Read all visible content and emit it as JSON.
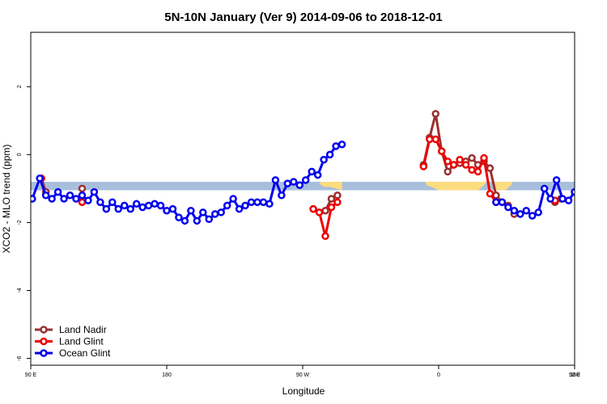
{
  "chart_data": {
    "type": "line",
    "title": "5N-10N January (Ver 9)   2014-09-06 to 2018-12-01",
    "xlabel": "Longitude",
    "ylabel": "XCO2 - MLO trend (ppm)",
    "xlim": [
      90,
      450
    ],
    "ylim": [
      -6.2,
      3.6
    ],
    "x_ticks": [
      {
        "value": 90,
        "label": "90 E"
      },
      {
        "value": 180,
        "label": "180"
      },
      {
        "value": 270,
        "label": "90 W"
      },
      {
        "value": 360,
        "label": "0"
      },
      {
        "value": 450,
        "label": "90 E"
      },
      {
        "value": 540,
        "label": "180"
      }
    ],
    "y_ticks": [
      {
        "value": -6,
        "label": "-6"
      },
      {
        "value": -4,
        "label": "-4"
      },
      {
        "value": -2,
        "label": "-2"
      },
      {
        "value": 0,
        "label": "0"
      },
      {
        "value": 2,
        "label": "2"
      }
    ],
    "band": {
      "y_min": -1.05,
      "y_max": -0.8,
      "color": "#a8bfdc",
      "land_color": "#fddc80"
    },
    "legend": {
      "placement": "bottom-left"
    },
    "series": [
      {
        "name": "Land Nadir",
        "color": "#9b3030",
        "segments": [
          [
            [
              97,
              -0.7
            ],
            [
              100,
              -1.1
            ]
          ],
          [
            [
              124,
              -1.0
            ]
          ],
          [
            [
              277,
              -1.6
            ],
            [
              281,
              -1.7
            ],
            [
              285,
              -1.65
            ],
            [
              289,
              -1.3
            ],
            [
              293,
              -1.2
            ]
          ],
          [
            [
              350,
              -0.3
            ],
            [
              354,
              0.5
            ],
            [
              358,
              1.2
            ],
            [
              362,
              0.1
            ],
            [
              366,
              -0.5
            ],
            [
              370,
              -0.3
            ],
            [
              374,
              -0.25
            ],
            [
              378,
              -0.2
            ],
            [
              382,
              -0.1
            ],
            [
              386,
              -0.3
            ],
            [
              390,
              -0.2
            ],
            [
              394,
              -0.4
            ],
            [
              398,
              -1.2
            ],
            [
              402,
              -1.4
            ],
            [
              406,
              -1.5
            ],
            [
              410,
              -1.75
            ]
          ],
          [
            [
              437,
              -1.4
            ],
            [
              441,
              -1.3
            ]
          ],
          [
            [
              459,
              -0.7
            ],
            [
              463,
              -1.1
            ]
          ],
          [
            [
              482,
              -1.0
            ]
          ]
        ]
      },
      {
        "name": "Land Glint",
        "color": "#ee0000",
        "segments": [
          [
            [
              97,
              -0.7
            ]
          ],
          [
            [
              124,
              -1.4
            ]
          ],
          [
            [
              277,
              -1.6
            ],
            [
              281,
              -1.7
            ],
            [
              285,
              -2.4
            ],
            [
              289,
              -1.55
            ],
            [
              293,
              -1.4
            ]
          ],
          [
            [
              350,
              -0.35
            ],
            [
              354,
              0.45
            ],
            [
              358,
              0.45
            ],
            [
              362,
              0.1
            ],
            [
              366,
              -0.2
            ],
            [
              370,
              -0.3
            ],
            [
              374,
              -0.15
            ],
            [
              378,
              -0.3
            ],
            [
              382,
              -0.45
            ],
            [
              386,
              -0.5
            ],
            [
              390,
              -0.1
            ],
            [
              394,
              -1.15
            ],
            [
              398,
              -1.4
            ]
          ],
          [
            [
              437,
              -1.35
            ]
          ],
          [
            [
              459,
              -0.7
            ]
          ],
          [
            [
              482,
              -1.4
            ]
          ]
        ]
      },
      {
        "name": "Ocean Glint",
        "color": "#0000ee",
        "segments": [
          [
            [
              91,
              -1.3
            ],
            [
              96,
              -0.7
            ],
            [
              100,
              -1.2
            ],
            [
              104,
              -1.3
            ],
            [
              108,
              -1.1
            ],
            [
              112,
              -1.3
            ],
            [
              116,
              -1.2
            ],
            [
              120,
              -1.3
            ],
            [
              124,
              -1.2
            ],
            [
              128,
              -1.35
            ],
            [
              132,
              -1.1
            ],
            [
              136,
              -1.4
            ],
            [
              140,
              -1.6
            ],
            [
              144,
              -1.4
            ],
            [
              148,
              -1.6
            ],
            [
              152,
              -1.5
            ],
            [
              156,
              -1.6
            ],
            [
              160,
              -1.45
            ],
            [
              164,
              -1.55
            ],
            [
              168,
              -1.5
            ],
            [
              172,
              -1.45
            ],
            [
              176,
              -1.5
            ],
            [
              180,
              -1.65
            ],
            [
              184,
              -1.6
            ],
            [
              188,
              -1.85
            ],
            [
              192,
              -1.95
            ],
            [
              196,
              -1.65
            ],
            [
              200,
              -1.95
            ],
            [
              204,
              -1.7
            ],
            [
              208,
              -1.9
            ],
            [
              212,
              -1.75
            ],
            [
              216,
              -1.7
            ],
            [
              220,
              -1.5
            ],
            [
              224,
              -1.3
            ],
            [
              228,
              -1.6
            ],
            [
              232,
              -1.5
            ],
            [
              236,
              -1.4
            ],
            [
              240,
              -1.4
            ],
            [
              244,
              -1.4
            ],
            [
              248,
              -1.45
            ],
            [
              252,
              -0.75
            ],
            [
              256,
              -1.2
            ],
            [
              260,
              -0.85
            ],
            [
              264,
              -0.8
            ],
            [
              268,
              -0.9
            ],
            [
              272,
              -0.75
            ],
            [
              276,
              -0.5
            ],
            [
              280,
              -0.6
            ],
            [
              284,
              -0.15
            ],
            [
              288,
              0.0
            ],
            [
              292,
              0.25
            ],
            [
              296,
              0.3
            ]
          ],
          [
            [
              398,
              -1.4
            ],
            [
              402,
              -1.4
            ],
            [
              406,
              -1.55
            ],
            [
              410,
              -1.65
            ],
            [
              414,
              -1.75
            ],
            [
              418,
              -1.65
            ],
            [
              422,
              -1.8
            ],
            [
              426,
              -1.7
            ],
            [
              430,
              -1.0
            ],
            [
              434,
              -1.3
            ],
            [
              438,
              -0.75
            ],
            [
              442,
              -1.3
            ],
            [
              446,
              -1.35
            ],
            [
              450,
              -1.1
            ],
            [
              454,
              -1.3
            ],
            [
              458,
              -1.15
            ],
            [
              462,
              -1.35
            ],
            [
              466,
              -1.15
            ],
            [
              470,
              -1.4
            ],
            [
              474,
              -1.6
            ],
            [
              478,
              -1.45
            ],
            [
              482,
              -1.6
            ],
            [
              486,
              -1.5
            ],
            [
              490,
              -1.6
            ],
            [
              494,
              -1.4
            ],
            [
              498,
              -1.55
            ]
          ]
        ]
      }
    ]
  }
}
